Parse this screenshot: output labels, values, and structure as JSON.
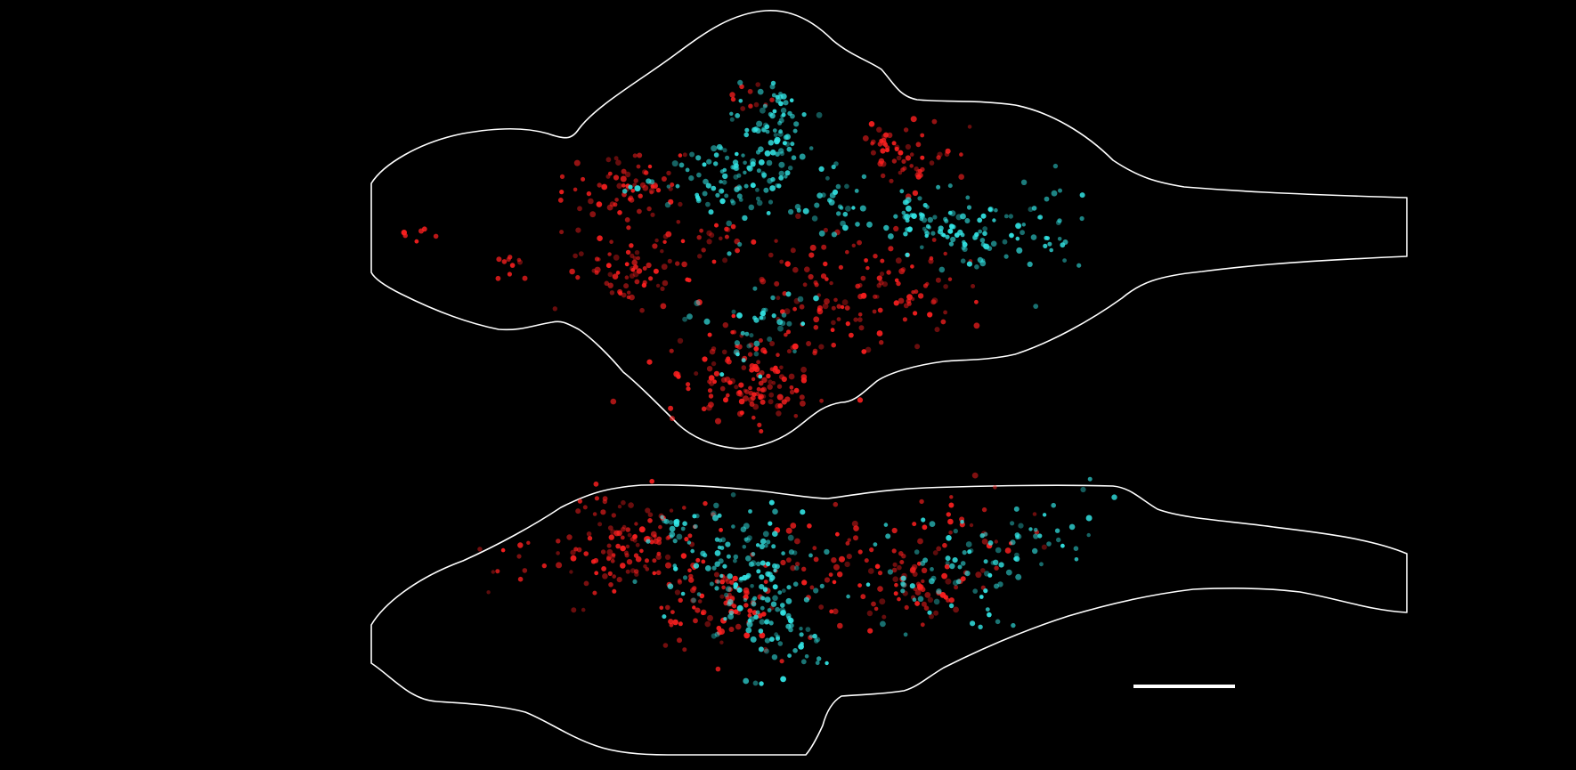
{
  "figure": {
    "background": "#000000",
    "outline_color": "#ffffff",
    "scale_bar_color": "#ffffff",
    "channels": [
      {
        "color": "#ff2020"
      },
      {
        "color": "#33e6e6"
      }
    ]
  }
}
